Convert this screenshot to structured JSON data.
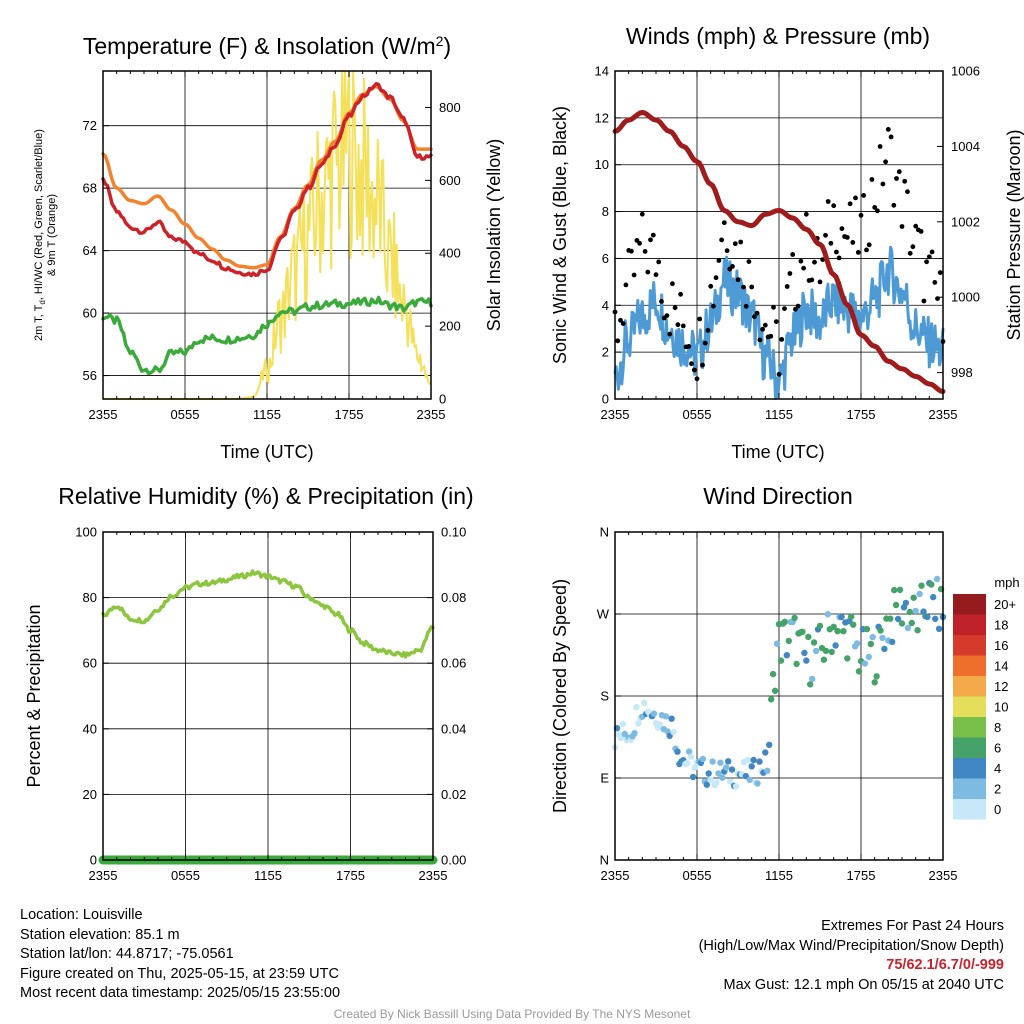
{
  "colors": {
    "temp_red": "#cc2229",
    "temp_orange": "#f2832c",
    "dewpoint_green": "#3aaa3a",
    "insolation_yellow": "#f5e05a",
    "wind_blue": "#4d9ad4",
    "gust_black": "#000000",
    "pressure_maroon": "#a01c1c",
    "rh_green": "#8cc63f",
    "precip_green": "#3aaa3a"
  },
  "chart_data": [
    {
      "type": "line",
      "title": "Temperature (F) & Insolation (W/m²)",
      "title_main": "Temperature (F) & Insolation (W/m",
      "title_sup": "2",
      "title_end": ")",
      "xlabel": "Time (UTC)",
      "ylabel_left_line1": "2m T, T",
      "ylabel_left_sub": "d",
      "ylabel_left_line1_end": ", HI/WC (Red, Green, Scarlet/Blue)",
      "ylabel_left_line2": "& 9m T (Orange)",
      "ylabel_right": "Solar Insolation (Yellow)",
      "x_ticks": [
        "2355",
        "0555",
        "1155",
        "1755",
        "2355"
      ],
      "y_left_ticks": [
        "56",
        "60",
        "64",
        "68",
        "72"
      ],
      "y_right_ticks": [
        "0",
        "200",
        "400",
        "600",
        "800"
      ],
      "x": [
        0,
        1,
        2,
        3,
        4,
        5,
        6,
        7,
        8,
        9,
        10,
        11,
        12,
        13,
        14,
        15,
        16,
        17,
        18,
        19,
        20,
        21,
        22,
        23,
        24
      ],
      "series": [
        {
          "key": "temp_2m",
          "values": [
            68.5,
            66.5,
            65.5,
            65.2,
            65.8,
            64.8,
            64.6,
            63.8,
            63.4,
            62.9,
            62.6,
            62.5,
            62.8,
            64.7,
            66.5,
            68.0,
            69.5,
            70.8,
            72.6,
            73.9,
            74.6,
            73.8,
            72.4,
            70.0,
            70.0
          ]
        },
        {
          "key": "temp_9m",
          "values": [
            70.2,
            68.0,
            67.2,
            67.0,
            67.5,
            66.6,
            65.7,
            64.8,
            64.1,
            63.4,
            63.0,
            62.9,
            63.1,
            64.9,
            66.7,
            68.2,
            69.8,
            71.0,
            72.8,
            74.0,
            74.5,
            73.7,
            72.3,
            70.5,
            70.5
          ]
        },
        {
          "key": "dewpoint",
          "values": [
            59.8,
            59.5,
            57.5,
            56.4,
            56.3,
            57.4,
            57.5,
            58.3,
            58.4,
            58.3,
            58.4,
            58.6,
            59.3,
            60.1,
            60.1,
            60.4,
            60.5,
            60.6,
            60.6,
            60.7,
            60.8,
            60.5,
            60.3,
            60.7,
            60.7
          ]
        },
        {
          "key": "insolation",
          "values": [
            0,
            0,
            0,
            0,
            0,
            0,
            0,
            0,
            0,
            0,
            1,
            6,
            80,
            220,
            340,
            450,
            560,
            640,
            700,
            620,
            540,
            380,
            260,
            120,
            40
          ]
        }
      ]
    },
    {
      "type": "scatter",
      "title": "Winds (mph) & Pressure (mb)",
      "xlabel": "Time (UTC)",
      "ylabel_left": "Sonic Wind & Gust (Blue, Black)",
      "ylabel_right": "Station Pressure (Maroon)",
      "x_ticks": [
        "2355",
        "0555",
        "1155",
        "1755",
        "2355"
      ],
      "y_left_ticks": [
        "0",
        "2",
        "4",
        "6",
        "8",
        "10",
        "12",
        "14"
      ],
      "y_right_ticks": [
        "998",
        "1000",
        "1002",
        "1004",
        "1006"
      ],
      "x": [
        0,
        1,
        2,
        3,
        4,
        5,
        6,
        7,
        8,
        9,
        10,
        11,
        12,
        13,
        14,
        15,
        16,
        17,
        18,
        19,
        20,
        21,
        22,
        23,
        24
      ],
      "series": [
        {
          "key": "wind",
          "values": [
            1.0,
            2.5,
            3.5,
            4.2,
            3.0,
            2.4,
            1.8,
            3.2,
            5.0,
            4.5,
            3.5,
            1.8,
            0.8,
            2.6,
            3.8,
            3.3,
            4.2,
            3.8,
            3.5,
            4.2,
            5.5,
            4.6,
            3.0,
            2.4,
            2.0
          ]
        },
        {
          "key": "gust",
          "values": [
            3.0,
            4.8,
            6.5,
            6.0,
            4.0,
            3.2,
            2.2,
            4.5,
            7.5,
            6.2,
            5.0,
            3.2,
            2.2,
            4.8,
            6.5,
            5.5,
            7.8,
            7.0,
            7.0,
            8.8,
            10.5,
            8.5,
            6.5,
            5.0,
            4.0
          ]
        },
        {
          "key": "pressure",
          "values": [
            1004.4,
            1004.7,
            1004.9,
            1004.7,
            1004.4,
            1004.0,
            1003.6,
            1003.0,
            1002.3,
            1002.0,
            1001.9,
            1002.2,
            1002.3,
            1002.1,
            1001.8,
            1001.4,
            1000.6,
            999.8,
            999.0,
            998.7,
            998.3,
            998.1,
            997.9,
            997.7,
            997.5
          ]
        }
      ]
    },
    {
      "type": "line",
      "title": "Relative Humidity (%) & Precipitation (in)",
      "ylabel_left": "Percent & Precipitation",
      "x_ticks": [
        "2355",
        "0555",
        "1155",
        "1755",
        "2355"
      ],
      "y_left_ticks": [
        "0",
        "20",
        "40",
        "60",
        "80",
        "100"
      ],
      "y_right_ticks": [
        "0.00",
        "0.02",
        "0.04",
        "0.06",
        "0.08",
        "0.10"
      ],
      "x": [
        0,
        1,
        2,
        3,
        4,
        5,
        6,
        7,
        8,
        9,
        10,
        11,
        12,
        13,
        14,
        15,
        16,
        17,
        18,
        19,
        20,
        21,
        22,
        23,
        24
      ],
      "series": [
        {
          "key": "rh",
          "values": [
            74.5,
            77.5,
            73.5,
            73.0,
            76.5,
            80.5,
            83.0,
            84.2,
            84.5,
            85.5,
            86.5,
            87.5,
            86.5,
            85.0,
            83.5,
            80.0,
            77.5,
            75.0,
            70.0,
            66.0,
            64.0,
            63.0,
            62.5,
            64.0,
            71.0
          ]
        },
        {
          "key": "precip",
          "values": [
            0,
            0,
            0,
            0,
            0,
            0,
            0,
            0,
            0,
            0,
            0,
            0,
            0,
            0,
            0,
            0,
            0,
            0,
            0,
            0,
            0,
            0,
            0,
            0,
            0
          ]
        }
      ]
    },
    {
      "type": "scatter",
      "title": "Wind Direction",
      "ylabel_left": "Direction (Colored By Speed)",
      "x_ticks": [
        "2355",
        "0555",
        "1155",
        "1755",
        "2355"
      ],
      "y_ticks": [
        "N",
        "E",
        "S",
        "W",
        "N"
      ],
      "colorbar": {
        "unit": "mph",
        "labels": [
          "0",
          "2",
          "4",
          "6",
          "8",
          "10",
          "12",
          "14",
          "16",
          "18",
          "20+"
        ],
        "colors": [
          "#c6e8f8",
          "#7dbbe3",
          "#4087c4",
          "#45a36a",
          "#79c04a",
          "#e4de5a",
          "#f4aa4a",
          "#ee6e2c",
          "#d63a2a",
          "#c0222a",
          "#951b1f"
        ]
      },
      "x": [
        0,
        1,
        2,
        3,
        4,
        5,
        6,
        7,
        8,
        9,
        10,
        11,
        12,
        13,
        14,
        15,
        16,
        17,
        18,
        19,
        20,
        21,
        22,
        23,
        24
      ],
      "series": [
        {
          "key": "direction_deg",
          "values": [
            135,
            140,
            170,
            160,
            150,
            110,
            100,
            95,
            95,
            95,
            95,
            105,
            240,
            245,
            220,
            230,
            255,
            250,
            225,
            225,
            260,
            280,
            265,
            285,
            275
          ]
        }
      ]
    }
  ],
  "info_left": [
    "Location: Louisville",
    "Station elevation: 85.1 m",
    "Station lat/lon: 44.8717; -75.0561",
    "Figure created on Thu, 2025-05-15, at 23:59 UTC",
    "Most recent data timestamp: 2025/05/15 23:55:00"
  ],
  "extremes": {
    "heading": "Extremes For Past 24 Hours",
    "subheading": "(High/Low/Max Wind/Precipitation/Snow Depth)",
    "values": "75/62.1/6.7/0/-999",
    "max_gust": "Max Gust: 12.1 mph On 05/15 at 2040 UTC"
  },
  "credit": "Created By Nick Bassill Using Data Provided By The NYS Mesonet"
}
